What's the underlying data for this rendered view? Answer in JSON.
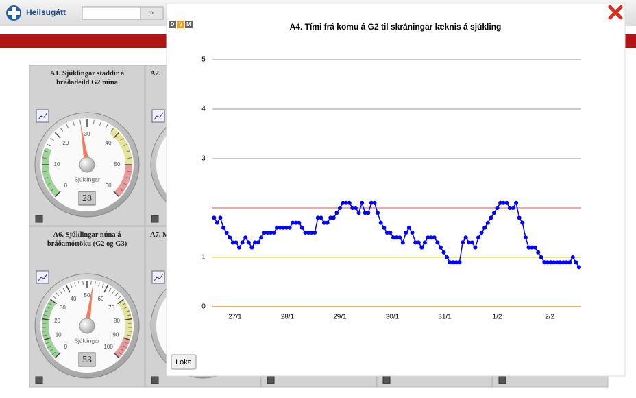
{
  "header": {
    "brand": "Heilsugátt",
    "go_button": "»"
  },
  "dashboard": {
    "panels": [
      {
        "title": "A1. Sjúklingar staddir á bráðadeild G2 núna",
        "unit": "Sjúklingar",
        "ticks": [
          0,
          10,
          20,
          30,
          40,
          50,
          60
        ],
        "value": 28,
        "bands": [
          {
            "from": 0,
            "to": 15,
            "color": "#9ed39a"
          },
          {
            "from": 38,
            "to": 50,
            "color": "#e6e39a"
          },
          {
            "from": 50,
            "to": 60,
            "color": "#e99a9a"
          }
        ]
      },
      {
        "title": "A2."
      },
      {
        "title": "A6. Sjúklingar núna á bráðamóttöku (G2 og G3)",
        "unit": "Sjúklingar",
        "ticks": [
          0,
          10,
          20,
          30,
          40,
          50,
          60,
          70,
          80,
          90,
          100
        ],
        "value": 53,
        "bands": [
          {
            "from": 0,
            "to": 30,
            "color": "#9ed39a"
          },
          {
            "from": 70,
            "to": 90,
            "color": "#e6e39a"
          },
          {
            "from": 90,
            "to": 100,
            "color": "#e99a9a"
          }
        ]
      },
      {
        "title": "A7. M"
      }
    ]
  },
  "modal": {
    "view_buttons": [
      "D",
      "V",
      "M"
    ],
    "close_button": "Loka"
  },
  "chart_data": {
    "type": "line",
    "title": "A4. Tími frá komu á G2 til skráningar læknis á sjúkling",
    "x": [
      26.6,
      26.66,
      26.72,
      26.78,
      26.84,
      26.9,
      26.96,
      27.02,
      27.08,
      27.14,
      27.2,
      27.26,
      27.32,
      27.38,
      27.44,
      27.5,
      27.56,
      27.62,
      27.68,
      27.74,
      27.8,
      27.86,
      27.92,
      27.98,
      28.04,
      28.1,
      28.16,
      28.22,
      28.28,
      28.34,
      28.4,
      28.46,
      28.52,
      28.58,
      28.64,
      28.7,
      28.76,
      28.82,
      28.88,
      28.94,
      29,
      29.06,
      29.12,
      29.18,
      29.24,
      29.3,
      29.36,
      29.42,
      29.48,
      29.54,
      29.6,
      29.66,
      29.72,
      29.78,
      29.84,
      29.9,
      29.96,
      30.02,
      30.08,
      30.14,
      30.2,
      30.26,
      30.32,
      30.38,
      30.44,
      30.5,
      30.56,
      30.62,
      30.68,
      30.74,
      30.8,
      30.86,
      30.92,
      30.98,
      31.04,
      31.1,
      31.16,
      31.22,
      31.28,
      31.34,
      31.4,
      31.46,
      31.52,
      31.58,
      31.64,
      31.7,
      31.76,
      31.82,
      31.88,
      31.94,
      32,
      32.06,
      32.12,
      32.18,
      32.24,
      32.3,
      32.36,
      32.42,
      32.48,
      32.54,
      32.6,
      32.66,
      32.72,
      32.78,
      32.84,
      32.9,
      32.96,
      33.02,
      33.08,
      33.14,
      33.2,
      33.26,
      33.32,
      33.38,
      33.44,
      33.5,
      33.56
    ],
    "values": [
      1.8,
      1.7,
      1.8,
      1.6,
      1.5,
      1.4,
      1.3,
      1.3,
      1.2,
      1.3,
      1.4,
      1.3,
      1.2,
      1.3,
      1.3,
      1.4,
      1.5,
      1.5,
      1.5,
      1.5,
      1.6,
      1.6,
      1.6,
      1.6,
      1.6,
      1.7,
      1.7,
      1.7,
      1.6,
      1.5,
      1.5,
      1.5,
      1.5,
      1.8,
      1.8,
      1.7,
      1.7,
      1.8,
      1.8,
      1.9,
      2,
      2.1,
      2.1,
      2.1,
      2,
      2,
      1.9,
      2.1,
      1.9,
      1.9,
      2.1,
      2.1,
      1.9,
      1.7,
      1.6,
      1.5,
      1.5,
      1.4,
      1.4,
      1.4,
      1.3,
      1.5,
      1.6,
      1.5,
      1.3,
      1.3,
      1.2,
      1.3,
      1.4,
      1.4,
      1.4,
      1.3,
      1.2,
      1.1,
      1,
      0.9,
      0.9,
      0.9,
      0.9,
      1.3,
      1.4,
      1.3,
      1.3,
      1.2,
      1.4,
      1.5,
      1.6,
      1.7,
      1.8,
      1.9,
      2,
      2.1,
      2.1,
      2.1,
      2,
      2,
      2.1,
      1.8,
      1.7,
      1.4,
      1.2,
      1.2,
      1.2,
      1.1,
      1,
      0.9,
      0.9,
      0.9,
      0.9,
      0.9,
      0.9,
      0.9,
      0.9,
      0.9,
      1,
      0.9,
      0.8
    ],
    "color": "#0000ff",
    "xlim": [
      26.57,
      33.6
    ],
    "xticks": [
      {
        "value": 27,
        "label": "27/1"
      },
      {
        "value": 28,
        "label": "28/1"
      },
      {
        "value": 29,
        "label": "29/1"
      },
      {
        "value": 30,
        "label": "30/1"
      },
      {
        "value": 31,
        "label": "31/1"
      },
      {
        "value": 32,
        "label": "1/2"
      },
      {
        "value": 33,
        "label": "2/2"
      }
    ],
    "ylim": [
      0,
      5
    ],
    "yticks": [
      0,
      1,
      3,
      4,
      5
    ],
    "grid": true,
    "reference_lines": [
      {
        "value": 2,
        "color": "#f08a8a"
      },
      {
        "value": 1,
        "color": "#eeee55"
      },
      {
        "value": 0,
        "color": "#f5a030"
      }
    ]
  }
}
